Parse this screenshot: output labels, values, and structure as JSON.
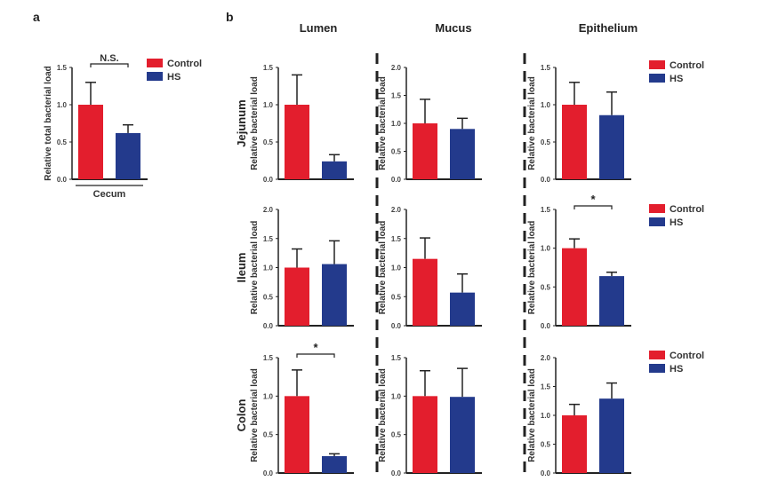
{
  "panel_labels": [
    "a",
    "b"
  ],
  "legend": [
    {
      "name": "Control",
      "color": "#e31e2d"
    },
    {
      "name": "HS",
      "color": "#233a8c"
    }
  ],
  "columns": [
    "Lumen",
    "Mucus",
    "Epithelium"
  ],
  "rows": [
    "Jejunum",
    "Ileum",
    "Colon"
  ],
  "chart_data": [
    {
      "type": "bar",
      "panel": "a",
      "categories": [
        "Control",
        "HS"
      ],
      "xlabel": "Cecum",
      "ylabel": "Relative total bacterial load",
      "values": [
        1.0,
        0.62
      ],
      "error_upper": [
        1.3,
        0.73
      ],
      "ylim": [
        0,
        1.5
      ],
      "yticks": [
        "0.0",
        "0.5",
        "1.0",
        "1.5"
      ],
      "annotation": "N.S."
    },
    {
      "type": "bar",
      "panel": "b",
      "row": "Jejunum",
      "column": "Lumen",
      "ylabel": "Relative bacterial load",
      "categories": [
        "Control",
        "HS"
      ],
      "values": [
        1.0,
        0.24
      ],
      "error_upper": [
        1.4,
        0.33
      ],
      "ylim": [
        0,
        1.5
      ],
      "yticks": [
        "0.0",
        "0.5",
        "1.0",
        "1.5"
      ],
      "annotation": ""
    },
    {
      "type": "bar",
      "panel": "b",
      "row": "Jejunum",
      "column": "Mucus",
      "ylabel": "Relative bacterial load",
      "categories": [
        "Control",
        "HS"
      ],
      "values": [
        1.0,
        0.9
      ],
      "error_upper": [
        1.43,
        1.09
      ],
      "ylim": [
        0,
        2.0
      ],
      "yticks": [
        "0.0",
        "0.5",
        "1.0",
        "1.5",
        "2.0"
      ],
      "annotation": ""
    },
    {
      "type": "bar",
      "panel": "b",
      "row": "Jejunum",
      "column": "Epithelium",
      "ylabel": "Relative bacterial load",
      "categories": [
        "Control",
        "HS"
      ],
      "values": [
        1.0,
        0.86
      ],
      "error_upper": [
        1.3,
        1.17
      ],
      "ylim": [
        0,
        1.5
      ],
      "yticks": [
        "0.0",
        "0.5",
        "1.0",
        "1.5"
      ],
      "annotation": ""
    },
    {
      "type": "bar",
      "panel": "b",
      "row": "Ileum",
      "column": "Lumen",
      "ylabel": "Relative bacterial load",
      "categories": [
        "Control",
        "HS"
      ],
      "values": [
        1.0,
        1.06
      ],
      "error_upper": [
        1.32,
        1.46
      ],
      "ylim": [
        0,
        2.0
      ],
      "yticks": [
        "0.0",
        "0.5",
        "1.0",
        "1.5",
        "2.0"
      ],
      "annotation": ""
    },
    {
      "type": "bar",
      "panel": "b",
      "row": "Ileum",
      "column": "Mucus",
      "ylabel": "Relative bacterial load",
      "categories": [
        "Control",
        "HS"
      ],
      "values": [
        1.15,
        0.57
      ],
      "error_upper": [
        1.51,
        0.89
      ],
      "ylim": [
        0,
        2.0
      ],
      "yticks": [
        "0.0",
        "0.5",
        "1.0",
        "1.5",
        "2.0"
      ],
      "annotation": ""
    },
    {
      "type": "bar",
      "panel": "b",
      "row": "Ileum",
      "column": "Epithelium",
      "ylabel": "Relative bacterial load",
      "categories": [
        "Control",
        "HS"
      ],
      "values": [
        1.0,
        0.64
      ],
      "error_upper": [
        1.12,
        0.69
      ],
      "ylim": [
        0,
        1.5
      ],
      "yticks": [
        "0.0",
        "0.5",
        "1.0",
        "1.5"
      ],
      "annotation": "*"
    },
    {
      "type": "bar",
      "panel": "b",
      "row": "Colon",
      "column": "Lumen",
      "ylabel": "Relative bacterial load",
      "categories": [
        "Control",
        "HS"
      ],
      "values": [
        1.0,
        0.22
      ],
      "error_upper": [
        1.34,
        0.25
      ],
      "ylim": [
        0,
        1.5
      ],
      "yticks": [
        "0.0",
        "0.5",
        "1.0",
        "1.5"
      ],
      "annotation": "*"
    },
    {
      "type": "bar",
      "panel": "b",
      "row": "Colon",
      "column": "Mucus",
      "ylabel": "Relative bacterial load",
      "categories": [
        "Control",
        "HS"
      ],
      "values": [
        1.0,
        0.99
      ],
      "error_upper": [
        1.33,
        1.36
      ],
      "ylim": [
        0,
        1.5
      ],
      "yticks": [
        "0.0",
        "0.5",
        "1.0",
        "1.5"
      ],
      "annotation": ""
    },
    {
      "type": "bar",
      "panel": "b",
      "row": "Colon",
      "column": "Epithelium",
      "ylabel": "Relative bacterial load",
      "categories": [
        "Control",
        "HS"
      ],
      "values": [
        1.0,
        1.29
      ],
      "error_upper": [
        1.19,
        1.56
      ],
      "ylim": [
        0,
        2.0
      ],
      "yticks": [
        "0.0",
        "0.5",
        "1.0",
        "1.5",
        "2.0"
      ],
      "annotation": ""
    }
  ]
}
